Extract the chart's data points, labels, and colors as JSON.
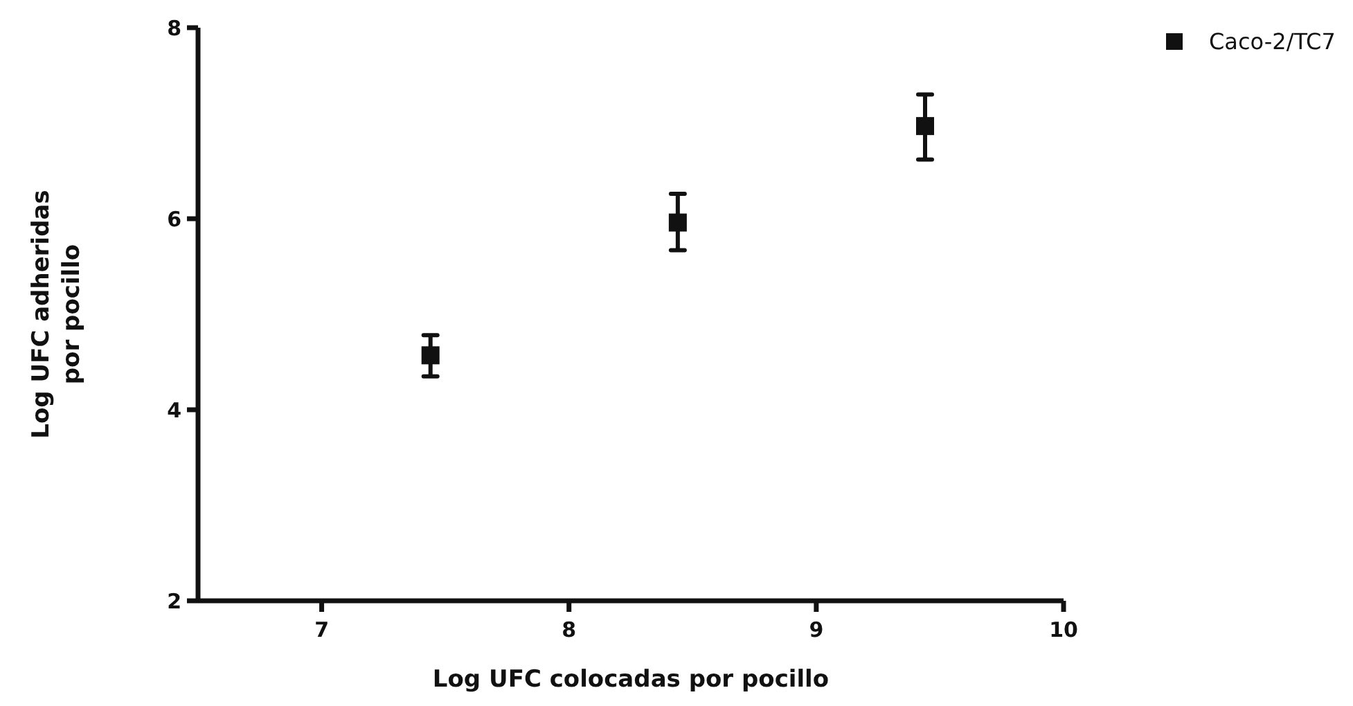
{
  "chart_data": {
    "type": "scatter",
    "xlabel": "Log UFC colocadas por pocillo",
    "ylabel": "Log UFC adheridas por pocillo",
    "x": [
      7.44,
      8.44,
      9.44
    ],
    "series": [
      {
        "name": "Caco-2/TC7",
        "color": "#111111",
        "values": [
          4.57,
          5.96,
          6.97
        ],
        "errors": [
          [
            4.35,
            4.78
          ],
          [
            5.67,
            6.26
          ],
          [
            6.62,
            7.3
          ]
        ]
      }
    ],
    "xlim": [
      6.5,
      10
    ],
    "xticks": [
      7,
      8,
      9,
      10
    ],
    "ylim": [
      2,
      8
    ],
    "yticks": [
      2,
      4,
      6,
      8
    ],
    "marker": "square",
    "legend": "top right",
    "grid": false
  }
}
